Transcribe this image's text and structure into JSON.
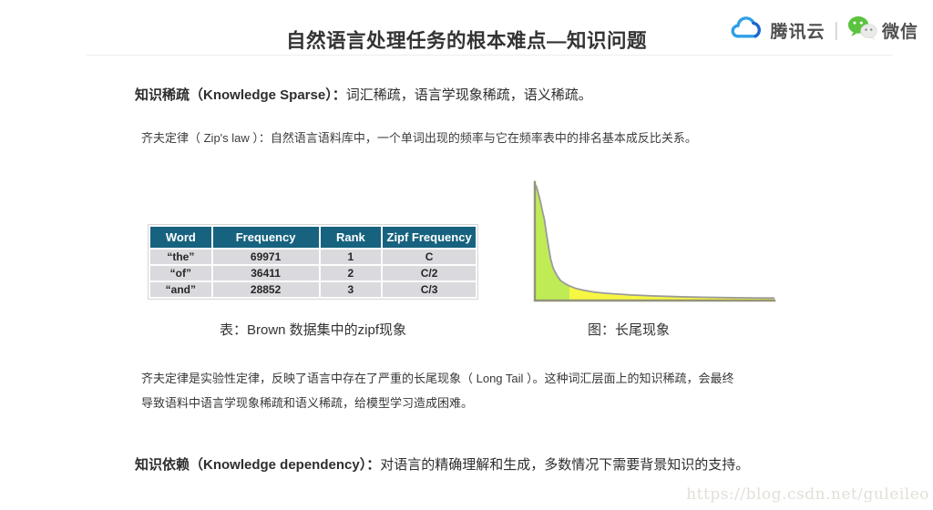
{
  "title": "自然语言处理任务的根本难点—知识问题",
  "brand": {
    "tencent_cloud_label": "腾讯云",
    "separator": "|",
    "wechat_label": "微信"
  },
  "content": {
    "knowledge_sparse_term": "知识稀疏（Knowledge Sparse）：",
    "knowledge_sparse_desc": "词汇稀疏，语言学现象稀疏，语义稀疏。",
    "zipf_definition": "齐夫定律（ Zip's law ）：自然语言语料库中，一个单词出现的频率与它在频率表中的排名基本成反比关系。",
    "table_caption": "表：Brown 数据集中的zipf现象",
    "figure_caption": "图：长尾现象",
    "zipf_paragraph_lines": [
      "齐夫定律是实验性定律，反映了语言中存在了严重的长尾现象（ Long Tail ）。这种词汇层面上的知识稀疏，会最终",
      "导致语料中语言学现象稀疏和语义稀疏，给模型学习造成困难。"
    ],
    "knowledge_dependency_term": "知识依赖（Knowledge dependency）：",
    "knowledge_dependency_desc": "对语言的精确理解和生成，多数情况下需要背景知识的支持。"
  },
  "zipf_table": {
    "headers": [
      "Word",
      "Frequency",
      "Rank",
      "Zipf Frequency"
    ],
    "rows": [
      [
        "“the”",
        "69971",
        "1",
        "C"
      ],
      [
        "“of”",
        "36411",
        "2",
        "C/2"
      ],
      [
        "“and”",
        "28852",
        "3",
        "C/3"
      ]
    ],
    "header_bg": "#17627f",
    "row_bg": "#d9d9de"
  },
  "chart_data": {
    "type": "area",
    "title": "图：长尾现象",
    "xlabel": "",
    "ylabel": "",
    "note": "Conceptual Zipf long-tail curve: relative frequency vs normalized rank (y ∝ 1/x); head of distribution shaded green, long tail shaded yellow; no ticks or gridlines shown",
    "x": [
      0.0,
      0.004,
      0.01,
      0.016,
      0.022,
      0.03,
      0.038,
      0.048,
      0.056,
      0.064,
      0.075,
      0.09,
      0.105,
      0.125,
      0.143,
      0.17,
      0.2,
      0.25,
      0.3,
      0.4,
      0.5,
      0.6,
      0.7,
      0.8,
      0.9,
      1.0
    ],
    "y": [
      1.0,
      0.99,
      0.95,
      0.9,
      0.85,
      0.77,
      0.7,
      0.56,
      0.46,
      0.36,
      0.28,
      0.22,
      0.175,
      0.145,
      0.127,
      0.105,
      0.09,
      0.072,
      0.062,
      0.048,
      0.039,
      0.033,
      0.028,
      0.025,
      0.023,
      0.021
    ],
    "head_cutoff": 0.143,
    "head_color": "#bfec55",
    "tail_color": "#f7f743",
    "line_color": "#9a9a9a",
    "axis_color": "#93937a",
    "xlim": [
      0,
      1
    ],
    "ylim": [
      0,
      1
    ]
  },
  "watermark": "https://blog.csdn.net/guleileo"
}
